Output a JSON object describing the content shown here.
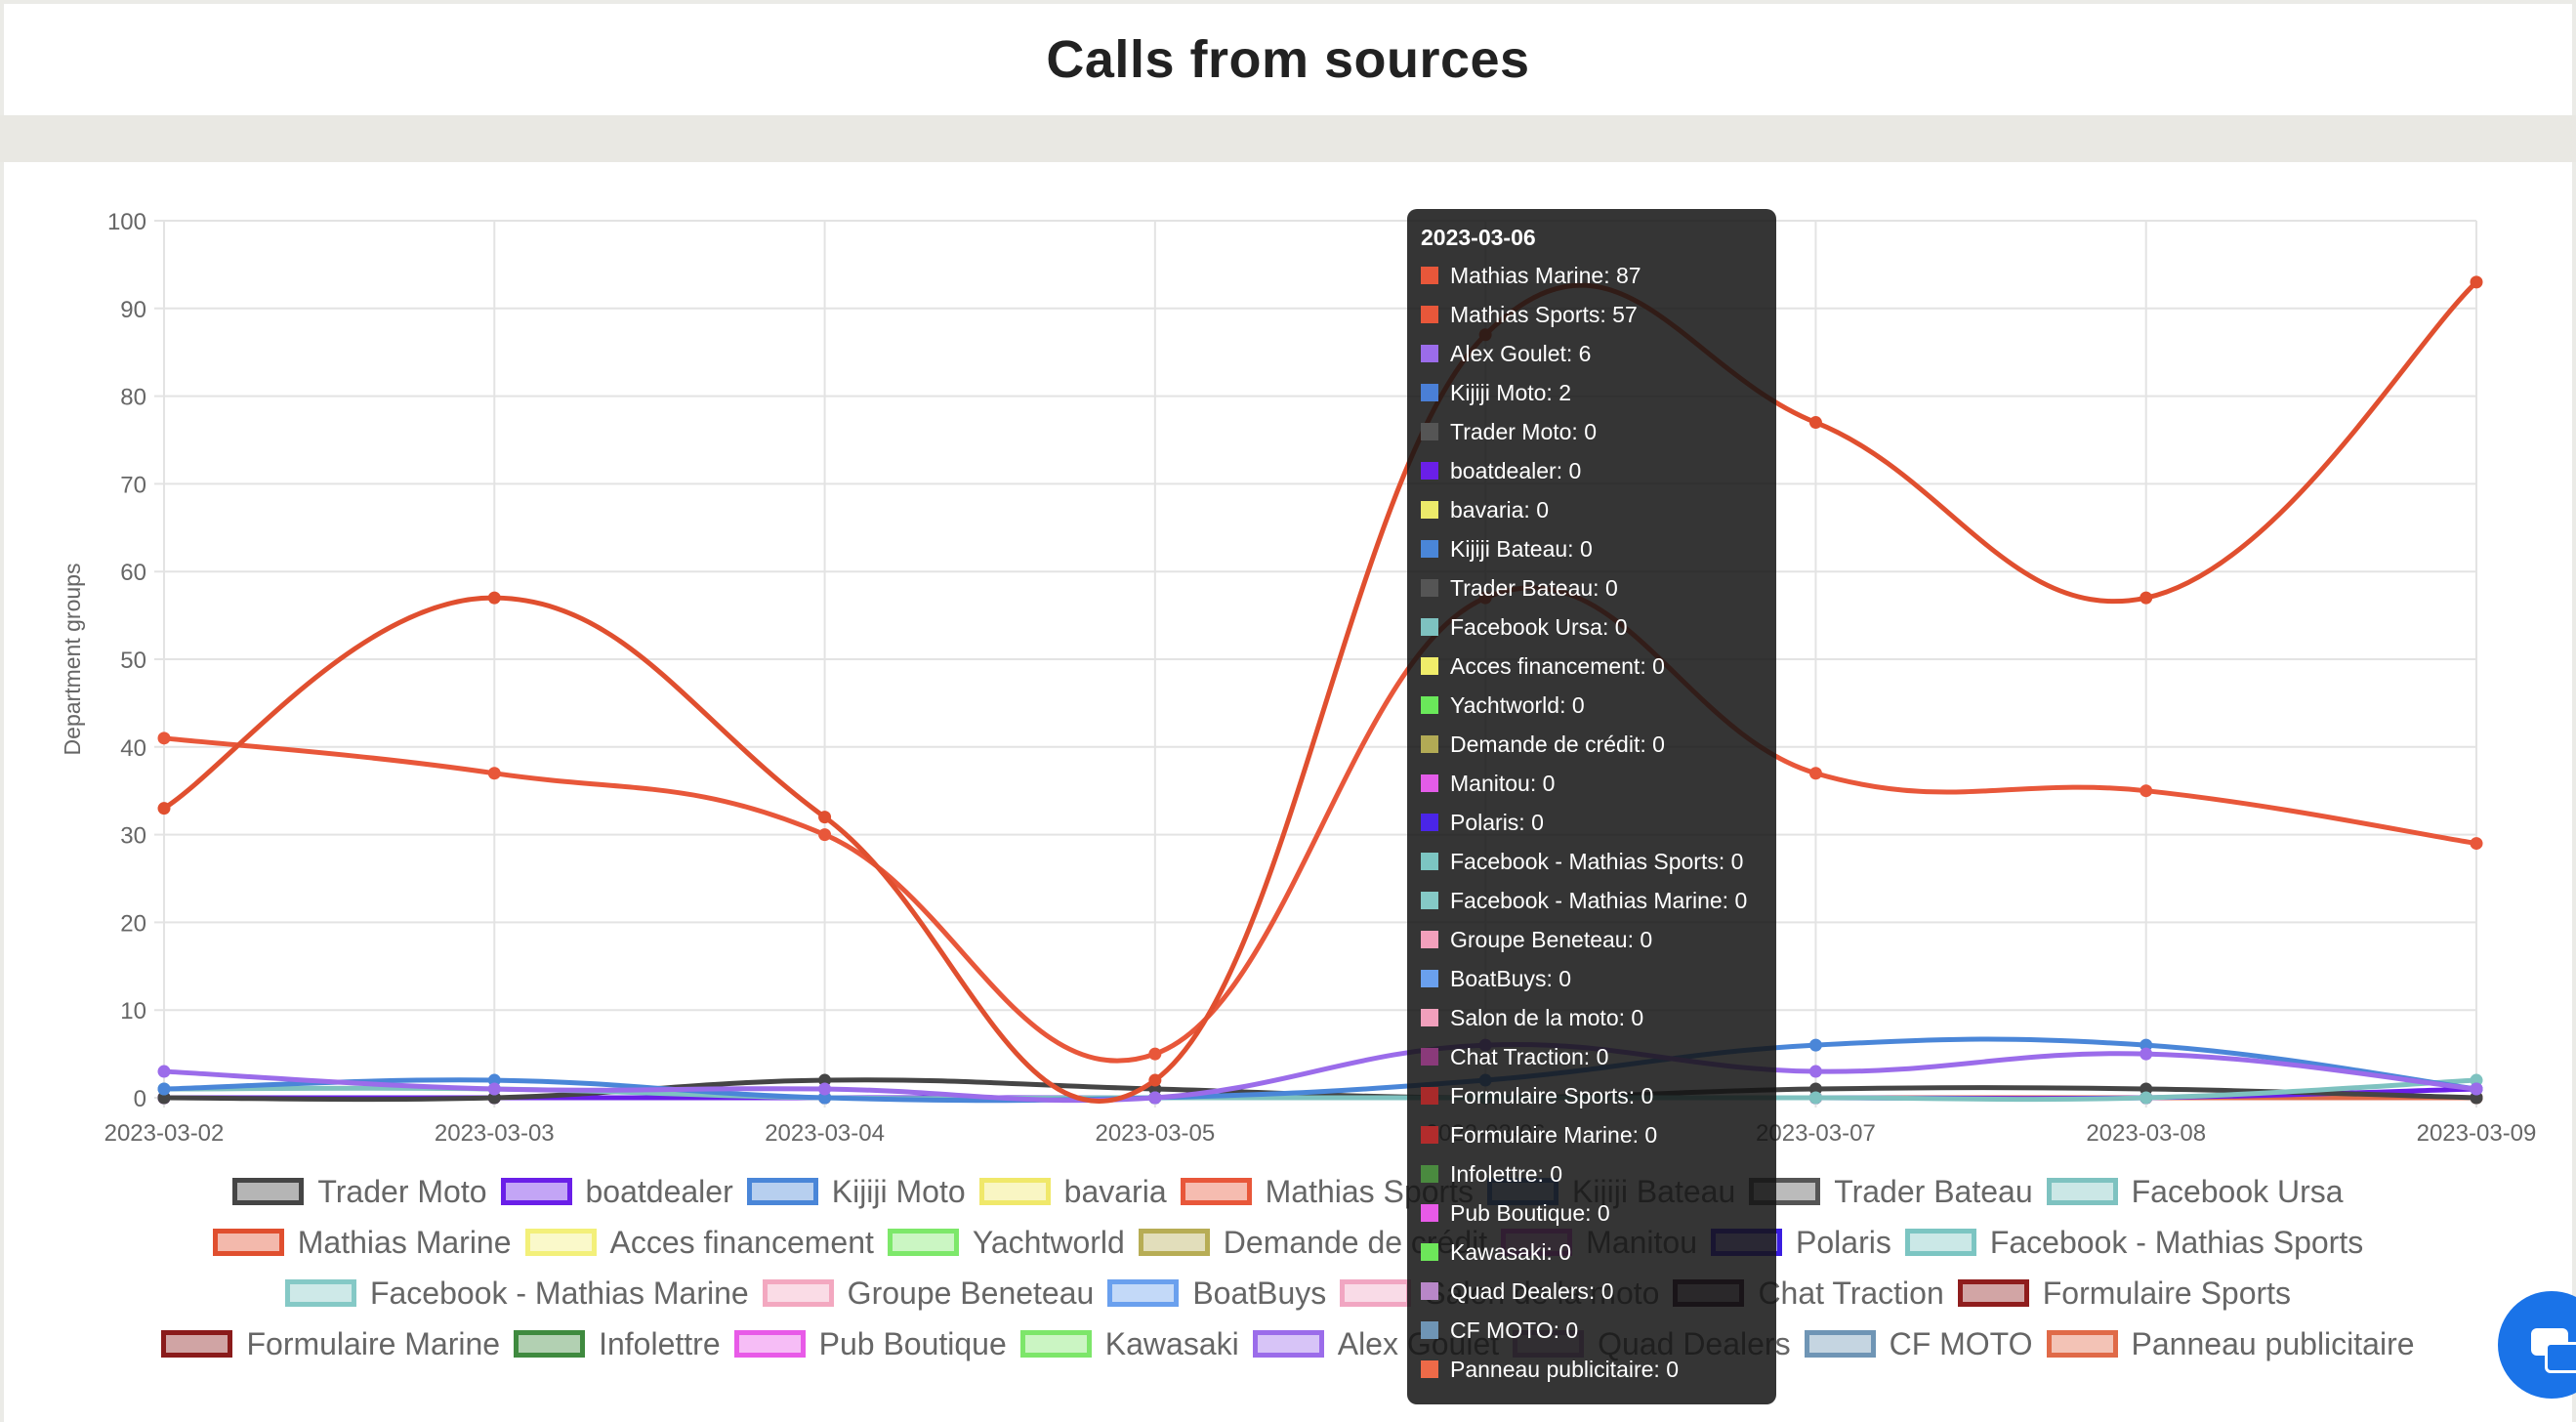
{
  "page": {
    "title": "Calls from sources"
  },
  "chart_data": {
    "type": "line",
    "title": "Calls from sources",
    "xlabel": "",
    "ylabel": "Department groups",
    "ylim": [
      0,
      100
    ],
    "yticks": [
      0,
      10,
      20,
      30,
      40,
      50,
      60,
      70,
      80,
      90,
      100
    ],
    "categories": [
      "2023-03-02",
      "2023-03-03",
      "2023-03-04",
      "2023-03-05",
      "2023-03-06",
      "2023-03-07",
      "2023-03-08",
      "2023-03-09"
    ],
    "grid": true,
    "legend_position": "bottom",
    "series": [
      {
        "name": "Trader Moto",
        "color": "#454545",
        "values": [
          0,
          0,
          2,
          1,
          0,
          1,
          1,
          0
        ]
      },
      {
        "name": "boatdealer",
        "color": "#6a1fe8",
        "values": [
          0,
          0,
          0,
          0,
          0,
          0,
          0,
          1
        ]
      },
      {
        "name": "Kijiji Moto",
        "color": "#4a86d8",
        "values": [
          1,
          2,
          0,
          0,
          2,
          6,
          6,
          1
        ]
      },
      {
        "name": "bavaria",
        "color": "#f0e86a",
        "values": [
          0,
          0,
          0,
          0,
          0,
          0,
          0,
          0
        ]
      },
      {
        "name": "Mathias Sports",
        "color": "#e8573a",
        "values": [
          41,
          37,
          30,
          5,
          57,
          37,
          35,
          29
        ]
      },
      {
        "name": "Kijiji Bateau",
        "color": "#3f74c7",
        "values": [
          0,
          0,
          0,
          0,
          0,
          0,
          0,
          0
        ]
      },
      {
        "name": "Trader Bateau",
        "color": "#555555",
        "values": [
          0,
          0,
          0,
          0,
          0,
          0,
          0,
          0
        ]
      },
      {
        "name": "Facebook Ursa",
        "color": "#7ec2c0",
        "values": [
          1,
          1,
          0,
          0,
          0,
          0,
          0,
          2
        ]
      },
      {
        "name": "Mathias Marine",
        "color": "#e04f2f",
        "values": [
          33,
          57,
          32,
          2,
          87,
          77,
          57,
          93
        ]
      },
      {
        "name": "Acces financement",
        "color": "#f3f07a",
        "values": [
          0,
          0,
          0,
          0,
          0,
          0,
          0,
          0
        ]
      },
      {
        "name": "Yachtworld",
        "color": "#7de86a",
        "values": [
          0,
          0,
          0,
          0,
          0,
          0,
          0,
          0
        ]
      },
      {
        "name": "Demande de crédit",
        "color": "#b7ad55",
        "values": [
          0,
          0,
          0,
          0,
          0,
          0,
          0,
          0
        ]
      },
      {
        "name": "Manitou",
        "color": "#e35ce8",
        "values": [
          0,
          0,
          0,
          0,
          0,
          0,
          0,
          0
        ]
      },
      {
        "name": "Polaris",
        "color": "#3a1de0",
        "values": [
          0,
          0,
          0,
          0,
          0,
          0,
          0,
          0
        ]
      },
      {
        "name": "Facebook - Mathias Sports",
        "color": "#7cc5c2",
        "values": [
          0,
          0,
          0,
          0,
          0,
          0,
          0,
          0
        ]
      },
      {
        "name": "Facebook - Mathias Marine",
        "color": "#85c9c6",
        "values": [
          0,
          0,
          0,
          0,
          0,
          0,
          0,
          0
        ]
      },
      {
        "name": "Groupe Beneteau",
        "color": "#f3a8c0",
        "values": [
          0,
          0,
          0,
          0,
          0,
          0,
          0,
          0
        ]
      },
      {
        "name": "BoatBuys",
        "color": "#6aa0ee",
        "values": [
          0,
          0,
          0,
          0,
          0,
          0,
          0,
          0
        ]
      },
      {
        "name": "Salon de la moto",
        "color": "#f1a6c2",
        "values": [
          0,
          0,
          0,
          0,
          0,
          0,
          0,
          0
        ]
      },
      {
        "name": "Chat Traction",
        "color": "#3a1b33",
        "values": [
          0,
          0,
          0,
          0,
          0,
          0,
          0,
          0
        ]
      },
      {
        "name": "Formulaire Sports",
        "color": "#8f1d1d",
        "values": [
          0,
          0,
          0,
          0,
          0,
          0,
          0,
          0
        ]
      },
      {
        "name": "Formulaire Marine",
        "color": "#8a1b1b",
        "values": [
          0,
          0,
          0,
          0,
          0,
          0,
          0,
          0
        ]
      },
      {
        "name": "Infolettre",
        "color": "#3f8a3f",
        "values": [
          0,
          0,
          0,
          0,
          0,
          0,
          0,
          0
        ]
      },
      {
        "name": "Pub Boutique",
        "color": "#e85ae8",
        "values": [
          0,
          0,
          0,
          0,
          0,
          0,
          0,
          0
        ]
      },
      {
        "name": "Kawasaki",
        "color": "#7de66a",
        "values": [
          0,
          0,
          0,
          0,
          0,
          0,
          0,
          0
        ]
      },
      {
        "name": "Alex Goulet",
        "color": "#9b6cea",
        "values": [
          3,
          1,
          1,
          0,
          6,
          3,
          5,
          1
        ]
      },
      {
        "name": "Quad Dealers",
        "color": "#b887c8",
        "values": [
          0,
          0,
          0,
          0,
          0,
          0,
          0,
          0
        ]
      },
      {
        "name": "CF MOTO",
        "color": "#6f95b5",
        "values": [
          0,
          0,
          0,
          0,
          0,
          0,
          0,
          0
        ]
      },
      {
        "name": "Panneau publicitaire",
        "color": "#e06a48",
        "values": [
          0,
          0,
          0,
          0,
          0,
          0,
          0,
          0
        ]
      }
    ],
    "legend_rows": [
      [
        "Trader Moto",
        "boatdealer",
        "Kijiji Moto",
        "bavaria",
        "Mathias Sports",
        "Kijiji Bateau",
        "Trader Bateau",
        "Facebook Ursa"
      ],
      [
        "Mathias Marine",
        "Acces financement",
        "Yachtworld",
        "Demande de crédit",
        "Manitou",
        "Polaris",
        "Facebook - Mathias Sports"
      ],
      [
        "Facebook - Mathias Marine",
        "Groupe Beneteau",
        "BoatBuys",
        "Salon de la moto",
        "Chat Traction",
        "Formulaire Sports"
      ],
      [
        "Formulaire Marine",
        "Infolettre",
        "Pub Boutique",
        "Kawasaki",
        "Alex Goulet",
        "Quad Dealers",
        "CF MOTO",
        "Panneau publicitaire"
      ]
    ],
    "tooltip": {
      "title": "2023-03-06",
      "rows": [
        {
          "label": "Mathias Marine: 87",
          "color": "#e8573a"
        },
        {
          "label": "Mathias Sports: 57",
          "color": "#e8573a"
        },
        {
          "label": "Alex Goulet: 6",
          "color": "#9b6cea"
        },
        {
          "label": "Kijiji Moto: 2",
          "color": "#4a7fd6"
        },
        {
          "label": "Trader Moto: 0",
          "color": "#555555"
        },
        {
          "label": "boatdealer: 0",
          "color": "#6a1fe8"
        },
        {
          "label": "bavaria: 0",
          "color": "#ecea6a"
        },
        {
          "label": "Kijiji Bateau: 0",
          "color": "#4a86d8"
        },
        {
          "label": "Trader Bateau: 0",
          "color": "#555555"
        },
        {
          "label": "Facebook Ursa: 0",
          "color": "#7ec2c0"
        },
        {
          "label": "Acces financement: 0",
          "color": "#f0ec6a"
        },
        {
          "label": "Yachtworld: 0",
          "color": "#6ae85a"
        },
        {
          "label": "Demande de crédit: 0",
          "color": "#b2aa55"
        },
        {
          "label": "Manitou: 0",
          "color": "#e35ce8"
        },
        {
          "label": "Polaris: 0",
          "color": "#4a25e8"
        },
        {
          "label": "Facebook - Mathias Sports: 0",
          "color": "#7cc5c2"
        },
        {
          "label": "Facebook - Mathias Marine: 0",
          "color": "#85c9c6"
        },
        {
          "label": "Groupe Beneteau: 0",
          "color": "#f3a0bc"
        },
        {
          "label": "BoatBuys: 0",
          "color": "#6aa0ee"
        },
        {
          "label": "Salon de la moto: 0",
          "color": "#f1a0bc"
        },
        {
          "label": "Chat Traction: 0",
          "color": "#8a3a7a"
        },
        {
          "label": "Formulaire Sports: 0",
          "color": "#a82a2a"
        },
        {
          "label": "Formulaire Marine: 0",
          "color": "#b22c2c"
        },
        {
          "label": "Infolettre: 0",
          "color": "#4a8a3f"
        },
        {
          "label": "Pub Boutique: 0",
          "color": "#e85ae8"
        },
        {
          "label": "Kawasaki: 0",
          "color": "#6de65a"
        },
        {
          "label": "Quad Dealers: 0",
          "color": "#b887c8"
        },
        {
          "label": "CF MOTO: 0",
          "color": "#6f95b5"
        },
        {
          "label": "Panneau publicitaire: 0",
          "color": "#ee6a48"
        }
      ]
    }
  }
}
